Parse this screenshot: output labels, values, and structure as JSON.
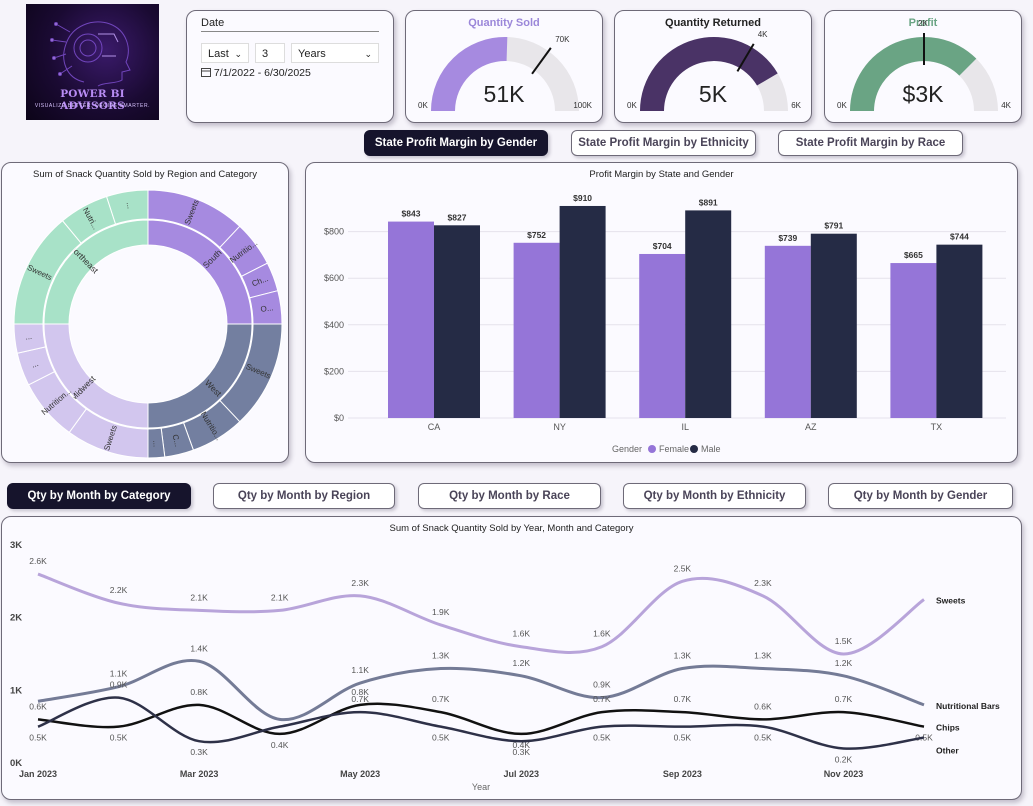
{
  "logo": {
    "title": "POWER BI ADVISORS",
    "tagline": "VISUALIZE BETTER. DECIDE SMARTER."
  },
  "date_slicer": {
    "title": "Date",
    "period": "Last",
    "count": "3",
    "unit": "Years",
    "range": "7/1/2022 - 6/30/2025",
    "icon": "calendar-icon"
  },
  "kpis": [
    {
      "title": "Quantity Sold",
      "value": "51K",
      "min_label": "0K",
      "max_label": "100K",
      "target_label": "70K",
      "fraction": 0.51,
      "target_fraction": 0.7,
      "fill": "#a68ae0",
      "title_color": "#9b87d9"
    },
    {
      "title": "Quantity Returned",
      "value": "5K",
      "min_label": "0K",
      "max_label": "6K",
      "target_label": "4K",
      "fraction": 0.83,
      "target_fraction": 0.67,
      "fill": "#4a3366",
      "title_color": "#222222"
    },
    {
      "title": "Profit",
      "value": "$3K",
      "min_label": "0K",
      "max_label": "4K",
      "target_label": "2K",
      "fraction": 0.75,
      "target_fraction": 0.5,
      "fill": "#6aa484",
      "title_color": "#6aa484"
    }
  ],
  "state_buttons": [
    "State Profit Margin by Gender",
    "State Profit Margin by Ethnicity",
    "State Profit Margin by Race"
  ],
  "sunburst": {
    "title": "Sum of Snack Quantity Sold by Region and Category",
    "inner": [
      {
        "label": "South",
        "fraction": 0.25,
        "color": "#a68ae0"
      },
      {
        "label": "West",
        "fraction": 0.25,
        "color": "#737fa0"
      },
      {
        "label": "Midwest",
        "fraction": 0.25,
        "color": "#d2c6ee"
      },
      {
        "label": "Northeast",
        "fraction": 0.25,
        "color": "#a8e2c8"
      }
    ],
    "outer": [
      {
        "label": "Sweets",
        "fraction": 0.12,
        "color": "#a68ae0"
      },
      {
        "label": "Nutritio...",
        "fraction": 0.055,
        "color": "#a68ae0"
      },
      {
        "label": "Ch...",
        "fraction": 0.035,
        "color": "#a68ae0"
      },
      {
        "label": "O...",
        "fraction": 0.04,
        "color": "#a68ae0"
      },
      {
        "label": "Sweets",
        "fraction": 0.13,
        "color": "#737fa0"
      },
      {
        "label": "Nutritio...",
        "fraction": 0.065,
        "color": "#737fa0"
      },
      {
        "label": "C...",
        "fraction": 0.035,
        "color": "#737fa0"
      },
      {
        "label": "...",
        "fraction": 0.02,
        "color": "#737fa0"
      },
      {
        "label": "Sweets",
        "fraction": 0.1,
        "color": "#d2c6ee"
      },
      {
        "label": "Nutrition...",
        "fraction": 0.075,
        "color": "#d2c6ee"
      },
      {
        "label": "...",
        "fraction": 0.04,
        "color": "#d2c6ee"
      },
      {
        "label": "...",
        "fraction": 0.035,
        "color": "#d2c6ee"
      },
      {
        "label": "Sweets",
        "fraction": 0.14,
        "color": "#a8e2c8"
      },
      {
        "label": "Nutri...",
        "fraction": 0.06,
        "color": "#a8e2c8"
      },
      {
        "label": "...",
        "fraction": 0.05,
        "color": "#a8e2c8"
      }
    ]
  },
  "chart_data": [
    {
      "type": "bar",
      "title": "Profit Margin by State and Gender",
      "categories": [
        "CA",
        "NY",
        "IL",
        "AZ",
        "TX"
      ],
      "series": [
        {
          "name": "Female",
          "values": [
            843,
            752,
            704,
            739,
            665
          ],
          "labels": [
            "$843",
            "$752",
            "$704",
            "$739",
            "$665"
          ],
          "color": "#9575d8"
        },
        {
          "name": "Male",
          "values": [
            827,
            910,
            891,
            791,
            744
          ],
          "labels": [
            "$827",
            "$910",
            "$891",
            "$791",
            "$744"
          ],
          "color": "#252b45"
        }
      ],
      "yticks": [
        "$0",
        "$200",
        "$400",
        "$600",
        "$800"
      ],
      "ylim": [
        0,
        1000
      ],
      "legend_title": "Gender",
      "legend_position": "bottom-center",
      "grid": true
    },
    {
      "type": "line",
      "title": "Sum of Snack Quantity Sold by Year, Month and Category",
      "xlabel": "Year",
      "x": [
        "Jan 2023",
        "Feb 2023",
        "Mar 2023",
        "Apr 2023",
        "May 2023",
        "Jun 2023",
        "Jul 2023",
        "Aug 2023",
        "Sep 2023",
        "Oct 2023",
        "Nov 2023",
        "Dec 2023"
      ],
      "xticks": [
        "Jan 2023",
        "Mar 2023",
        "May 2023",
        "Jul 2023",
        "Sep 2023",
        "Nov 2023"
      ],
      "yticks": [
        "0K",
        "1K",
        "2K",
        "3K"
      ],
      "ylim": [
        0,
        3000
      ],
      "series": [
        {
          "name": "Sweets",
          "values": [
            2600,
            2200,
            2100,
            2100,
            2300,
            1900,
            1600,
            1600,
            2500,
            2300,
            1500,
            2250
          ],
          "labels": [
            "2.6K",
            "2.2K",
            "2.1K",
            "2.1K",
            "2.3K",
            "1.9K",
            "1.6K",
            "1.6K",
            "2.5K",
            "2.3K",
            "1.5K",
            ""
          ],
          "color": "#b8a4da",
          "width": 3
        },
        {
          "name": "Nutritional Bars",
          "values": [
            850,
            1050,
            1400,
            600,
            1100,
            1300,
            1200,
            900,
            1300,
            1300,
            1200,
            800
          ],
          "labels": [
            "",
            "1.1K",
            "1.4K",
            "",
            "1.1K",
            "1.3K",
            "1.2K",
            "0.9K",
            "1.3K",
            "1.3K",
            "1.2K",
            ""
          ],
          "color": "#747b96",
          "width": 3
        },
        {
          "name": "Chips",
          "values": [
            600,
            500,
            800,
            400,
            800,
            700,
            400,
            700,
            700,
            600,
            700,
            500
          ],
          "labels": [
            "0.6K",
            "0.5K",
            "0.8K",
            "0.4K",
            "0.8K",
            "0.7K",
            "0.4K",
            "0.7K",
            "0.7K",
            "0.6K",
            "0.7K",
            "0.5K"
          ],
          "color": "#111111",
          "width": 2.5
        },
        {
          "name": "Other",
          "values": [
            500,
            900,
            300,
            500,
            700,
            500,
            300,
            500,
            500,
            500,
            200,
            350
          ],
          "labels": [
            "0.5K",
            "0.9K",
            "0.3K",
            "",
            "0.7K",
            "0.5K",
            "0.3K",
            "0.5K",
            "0.5K",
            "0.5K",
            "0.2K",
            ""
          ],
          "color": "#2e3148",
          "width": 2.5
        }
      ]
    }
  ],
  "month_buttons": [
    "Qty by Month by Category",
    "Qty by Month by Region",
    "Qty by Month by Race",
    "Qty by Month by Ethnicity",
    "Qty by Month by Gender"
  ]
}
